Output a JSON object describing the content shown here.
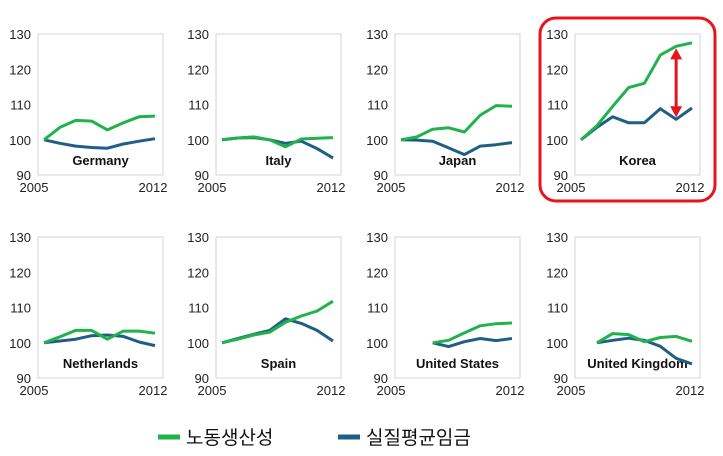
{
  "chart_data": {
    "type": "line",
    "x": [
      2005,
      2006,
      2007,
      2008,
      2009,
      2010,
      2011,
      2012
    ],
    "ylim": [
      90,
      130
    ],
    "yticks": [
      90,
      100,
      110,
      120,
      130
    ],
    "xtick_labels": [
      "2005",
      "2012"
    ],
    "grid": false,
    "legend": {
      "placement": "bottom",
      "entries": [
        {
          "name": "노동생산성",
          "color": "#22b24c"
        },
        {
          "name": "실질평균임금",
          "color": "#1f5f86"
        }
      ]
    },
    "highlight": {
      "panel": "Korea",
      "box_color": "#e8141b",
      "arrow_x": 2011
    },
    "panels": [
      {
        "name": "Germany",
        "series": [
          {
            "name": "노동생산성",
            "values": [
              100,
              103.5,
              105.5,
              105.3,
              102.8,
              104.8,
              106.5,
              106.7
            ]
          },
          {
            "name": "실질평균임금",
            "values": [
              100,
              99,
              98.2,
              97.8,
              97.6,
              98.8,
              99.6,
              100.3
            ]
          }
        ]
      },
      {
        "name": "Italy",
        "series": [
          {
            "name": "노동생산성",
            "values": [
              100,
              100.5,
              100.8,
              100,
              98,
              100.2,
              100.4,
              100.6
            ]
          },
          {
            "name": "실질평균임금",
            "values": [
              100,
              100.5,
              100.6,
              100,
              99,
              99.6,
              97.5,
              94.8
            ]
          }
        ]
      },
      {
        "name": "Japan",
        "series": [
          {
            "name": "노동생산성",
            "values": [
              100,
              100.8,
              103,
              103.4,
              102.2,
              107,
              109.7,
              109.5
            ]
          },
          {
            "name": "실질평균임금",
            "values": [
              100,
              99.9,
              99.6,
              97.7,
              95.8,
              98.2,
              98.6,
              99.2
            ]
          }
        ]
      },
      {
        "name": "Korea",
        "series": [
          {
            "name": "노동생산성",
            "values": [
              100,
              104,
              109.5,
              114.8,
              116,
              124,
              126.5,
              127.5
            ]
          },
          {
            "name": "실질평균임금",
            "values": [
              100,
              103.5,
              106.5,
              104.8,
              104.8,
              108.8,
              105.8,
              109
            ]
          }
        ]
      },
      {
        "name": "Netherlands",
        "series": [
          {
            "name": "노동생산성",
            "values": [
              100,
              101.7,
              103.5,
              103.5,
              101,
              103.3,
              103.3,
              102.7
            ]
          },
          {
            "name": "실질평균임금",
            "values": [
              100,
              100.5,
              101,
              102,
              102.2,
              101.8,
              100.2,
              99.2
            ]
          }
        ]
      },
      {
        "name": "Spain",
        "series": [
          {
            "name": "노동생산성",
            "values": [
              100,
              101,
              102.2,
              103,
              105.8,
              107.6,
              109,
              111.8
            ]
          },
          {
            "name": "실질평균임금",
            "values": [
              100,
              101.2,
              102.4,
              103.5,
              106.8,
              105.5,
              103.5,
              100.5
            ]
          }
        ]
      },
      {
        "name": "United States",
        "series": [
          {
            "name": "노동생산성",
            "values": [
              null,
              null,
              100,
              100.7,
              102.8,
              104.8,
              105.4,
              105.6
            ]
          },
          {
            "name": "실질평균임금",
            "values": [
              null,
              null,
              100,
              98.9,
              100.3,
              101.2,
              100.6,
              101.2
            ]
          }
        ]
      },
      {
        "name": "United Kingdom",
        "series": [
          {
            "name": "노동생산성",
            "values": [
              null,
              100,
              102.6,
              102.3,
              100.3,
              101.5,
              101.8,
              100.4
            ]
          },
          {
            "name": "실질평균임금",
            "values": [
              null,
              100,
              100.7,
              101.3,
              100.7,
              99,
              95.6,
              94
            ]
          }
        ]
      }
    ]
  }
}
